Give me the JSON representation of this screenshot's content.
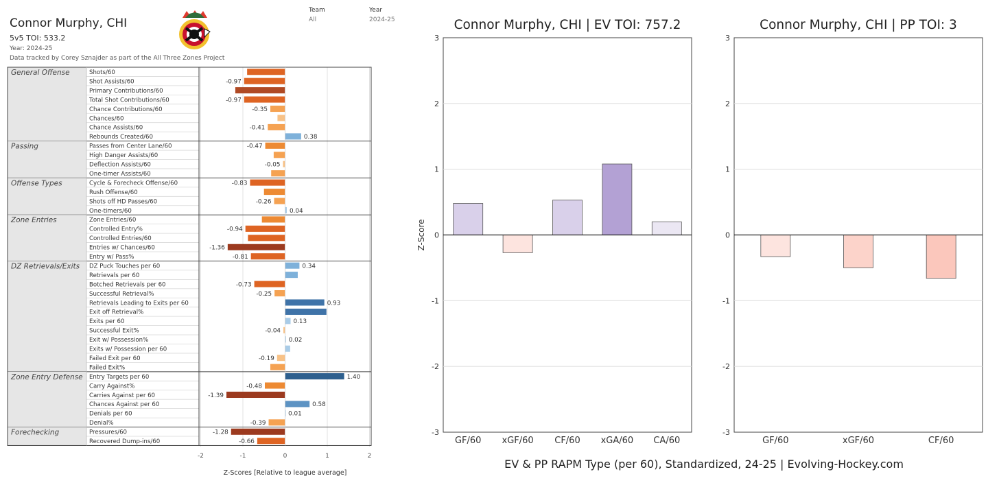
{
  "card": {
    "player_title": "Connor Murphy, CHI",
    "toi_label": "5v5 TOI:",
    "toi_value": "533.2",
    "year_text": "Year: 2024-25",
    "credit": "Data tracked by Corey Sznajder as part of the All Three Zones Project",
    "team_label": "Team",
    "team_value": "All",
    "year_label": "Year",
    "year_value": "2024-25",
    "logo_icon": "blackhawks-logo-icon"
  },
  "chart_data": [
    {
      "type": "bar",
      "orientation": "horizontal",
      "xlabel": "Z-Scores [Relative to league average]",
      "xlim": [
        -2,
        2
      ],
      "xticks": [
        "-2",
        "-1",
        "0",
        "1",
        "2"
      ],
      "groups": [
        {
          "name": "General Offense",
          "metrics": [
            {
              "label": "Shots/60",
              "value": -0.9,
              "data_label": ""
            },
            {
              "label": "Shot Assists/60",
              "value": -0.97,
              "data_label": "-0.97"
            },
            {
              "label": "Primary Contributions/60",
              "value": -1.18,
              "data_label": ""
            },
            {
              "label": "Total Shot Contributions/60",
              "value": -0.97,
              "data_label": "-0.97"
            },
            {
              "label": "Chance Contributions/60",
              "value": -0.35,
              "data_label": "-0.35"
            },
            {
              "label": "Chances/60",
              "value": -0.18,
              "data_label": ""
            },
            {
              "label": "Chance Assists/60",
              "value": -0.41,
              "data_label": "-0.41"
            },
            {
              "label": "Rebounds Created/60",
              "value": 0.38,
              "data_label": "0.38"
            }
          ]
        },
        {
          "name": "Passing",
          "metrics": [
            {
              "label": "Passes from Center Lane/60",
              "value": -0.47,
              "data_label": "-0.47"
            },
            {
              "label": "High Danger Assists/60",
              "value": -0.27,
              "data_label": ""
            },
            {
              "label": "Deflection Assists/60",
              "value": -0.05,
              "data_label": "-0.05"
            },
            {
              "label": "One-timer Assists/60",
              "value": -0.33,
              "data_label": ""
            }
          ]
        },
        {
          "name": "Offense Types",
          "metrics": [
            {
              "label": "Cycle & Forecheck Offense/60",
              "value": -0.83,
              "data_label": "-0.83"
            },
            {
              "label": "Rush Offense/60",
              "value": -0.5,
              "data_label": ""
            },
            {
              "label": "Shots off HD Passes/60",
              "value": -0.26,
              "data_label": "-0.26"
            },
            {
              "label": "One-timers/60",
              "value": 0.04,
              "data_label": "0.04"
            }
          ]
        },
        {
          "name": "Zone Entries",
          "metrics": [
            {
              "label": "Zone Entries/60",
              "value": -0.55,
              "data_label": ""
            },
            {
              "label": "Controlled Entry%",
              "value": -0.94,
              "data_label": "-0.94"
            },
            {
              "label": "Controlled Entries/60",
              "value": -0.88,
              "data_label": ""
            },
            {
              "label": "Entries w/ Chances/60",
              "value": -1.36,
              "data_label": "-1.36"
            },
            {
              "label": "Entry w/ Pass%",
              "value": -0.81,
              "data_label": "-0.81"
            }
          ]
        },
        {
          "name": "DZ Retrievals/Exits",
          "metrics": [
            {
              "label": "DZ Puck Touches per 60",
              "value": 0.34,
              "data_label": "0.34"
            },
            {
              "label": "Retrievals per 60",
              "value": 0.3,
              "data_label": ""
            },
            {
              "label": "Botched Retrievals per 60",
              "value": -0.73,
              "data_label": "-0.73"
            },
            {
              "label": "Successful Retrieval%",
              "value": -0.25,
              "data_label": "-0.25"
            },
            {
              "label": "Retrievals Leading to Exits per 60",
              "value": 0.93,
              "data_label": "0.93"
            },
            {
              "label": "Exit off Retrieval%",
              "value": 0.98,
              "data_label": ""
            },
            {
              "label": "Exits per 60",
              "value": 0.13,
              "data_label": "0.13"
            },
            {
              "label": "Successful Exit%",
              "value": -0.04,
              "data_label": "-0.04"
            },
            {
              "label": "Exit w/ Possession%",
              "value": 0.02,
              "data_label": "0.02"
            },
            {
              "label": "Exits w/ Possession per 60",
              "value": 0.12,
              "data_label": ""
            },
            {
              "label": "Failed Exit per 60",
              "value": -0.19,
              "data_label": "-0.19"
            },
            {
              "label": "Failed Exit%",
              "value": -0.35,
              "data_label": ""
            }
          ]
        },
        {
          "name": "Zone Entry Defense",
          "metrics": [
            {
              "label": "Entry Targets per 60",
              "value": 1.4,
              "data_label": "1.40"
            },
            {
              "label": "Carry Against%",
              "value": -0.48,
              "data_label": "-0.48"
            },
            {
              "label": "Carries Against per 60",
              "value": -1.39,
              "data_label": "-1.39"
            },
            {
              "label": "Chances Against per 60",
              "value": 0.58,
              "data_label": "0.58"
            },
            {
              "label": "Denials per 60",
              "value": 0.01,
              "data_label": "0.01"
            },
            {
              "label": "Denial%",
              "value": -0.39,
              "data_label": "-0.39"
            }
          ]
        },
        {
          "name": "Forechecking",
          "metrics": [
            {
              "label": "Pressures/60",
              "value": -1.28,
              "data_label": "-1.28"
            },
            {
              "label": "Recovered Dump-ins/60",
              "value": -0.66,
              "data_label": "-0.66"
            }
          ]
        }
      ]
    },
    {
      "type": "bar",
      "title": "Connor Murphy, CHI  |  EV TOI: 757.2",
      "ylabel": "Z-Score",
      "ylim": [
        -3,
        3
      ],
      "yticks": [
        "3",
        "2",
        "1",
        "0",
        "-1",
        "-2",
        "-3"
      ],
      "categories": [
        "GF/60",
        "xGF/60",
        "CF/60",
        "xGA/60",
        "CA/60"
      ],
      "values": [
        0.48,
        -0.27,
        0.53,
        1.08,
        0.2
      ],
      "colors": [
        "#d9d0ea",
        "#fde4df",
        "#d9d0ea",
        "#b3a1d4",
        "#ebe7f3"
      ]
    },
    {
      "type": "bar",
      "title": "Connor Murphy, CHI  |  PP TOI: 3",
      "ylim": [
        -3,
        3
      ],
      "yticks": [
        "3",
        "2",
        "1",
        "0",
        "-1",
        "-2",
        "-3"
      ],
      "categories": [
        "GF/60",
        "xGF/60",
        "CF/60"
      ],
      "values": [
        -0.33,
        -0.5,
        -0.66
      ],
      "colors": [
        "#fde4df",
        "#fcd3ca",
        "#fbc7bc"
      ]
    }
  ],
  "footer": {
    "caption": "EV & PP RAPM Type (per 60), Standardized, 24-25    |    Evolving-Hockey.com"
  }
}
